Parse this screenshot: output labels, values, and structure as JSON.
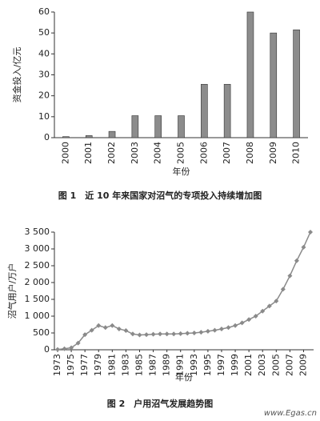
{
  "chart_data": [
    {
      "type": "bar",
      "caption": "图 1　近 10 年来国家对沼气的专项投入持续增加图",
      "x_label": "年份",
      "y_label": "资金投入/亿元",
      "categories": [
        "2000",
        "2001",
        "2002",
        "2003",
        "2004",
        "2005",
        "2006",
        "2007",
        "2008",
        "2009",
        "2010"
      ],
      "values": [
        0.5,
        1,
        3,
        10.5,
        10.5,
        10.5,
        25.5,
        25.5,
        60,
        50,
        51.5
      ],
      "color": "#8c8c8c",
      "ylim": [
        0,
        60
      ],
      "yticks": [
        0,
        10,
        20,
        30,
        40,
        50,
        60
      ]
    },
    {
      "type": "line",
      "caption": "图 2　户用沼气发展趋势图",
      "x_label": "年份",
      "y_label": "沼气用户/万户",
      "x": [
        1973,
        1974,
        1975,
        1976,
        1977,
        1978,
        1979,
        1980,
        1981,
        1982,
        1983,
        1984,
        1985,
        1986,
        1987,
        1988,
        1989,
        1990,
        1991,
        1992,
        1993,
        1994,
        1995,
        1996,
        1997,
        1998,
        1999,
        2000,
        2001,
        2002,
        2003,
        2004,
        2005,
        2006,
        2007,
        2008,
        2009,
        2010
      ],
      "values": [
        10,
        30,
        60,
        200,
        450,
        580,
        720,
        660,
        720,
        620,
        570,
        470,
        440,
        450,
        460,
        470,
        470,
        470,
        480,
        490,
        500,
        520,
        550,
        580,
        620,
        660,
        720,
        800,
        900,
        1000,
        1150,
        1300,
        1450,
        1800,
        2200,
        2650,
        3050,
        3500
      ],
      "color": "#8a8a8a",
      "xlim": [
        1973,
        2010
      ],
      "xticks": [
        1973,
        1975,
        1977,
        1979,
        1981,
        1983,
        1985,
        1987,
        1989,
        1991,
        1993,
        1995,
        1997,
        1999,
        2001,
        2003,
        2005,
        2007,
        2009
      ],
      "ylim": [
        0,
        3500
      ],
      "yticks": [
        0,
        500,
        {
          "value": 1000,
          "label": "1 000"
        },
        {
          "value": 1500,
          "label": "1 500"
        },
        {
          "value": 2000,
          "label": "2 000"
        },
        {
          "value": 2500,
          "label": "2 500"
        },
        {
          "value": 3000,
          "label": "3 000"
        },
        {
          "value": 3500,
          "label": "3 500"
        }
      ]
    }
  ],
  "watermark": "www.Egas.cn"
}
